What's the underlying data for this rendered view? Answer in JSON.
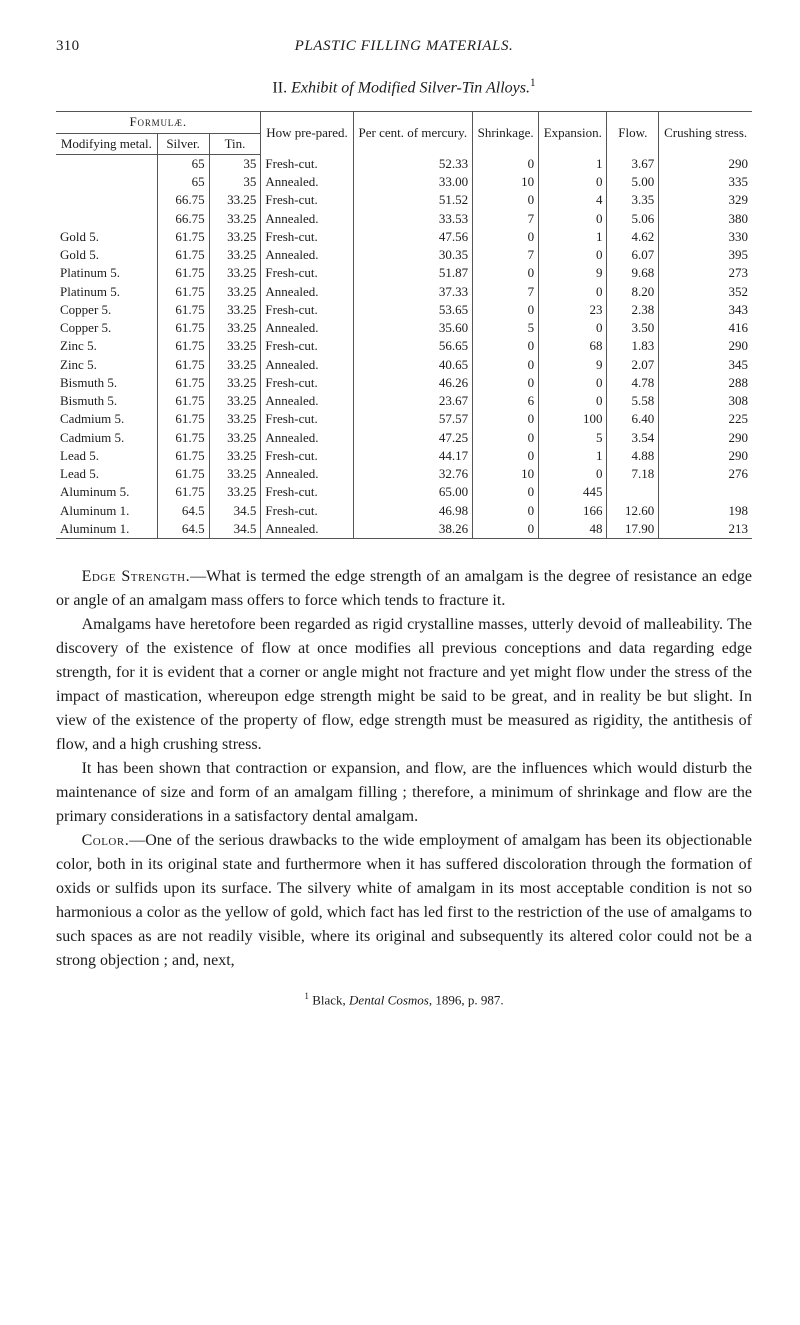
{
  "page": {
    "number": "310",
    "running_title": "PLASTIC FILLING MATERIALS."
  },
  "caption": {
    "roman": "II. ",
    "italic": "Exhibit of Modified Silver-Tin Alloys.",
    "sup": "1"
  },
  "table": {
    "headers": {
      "formulae": "Formulæ.",
      "modifying_metal": "Modifying metal.",
      "silver": "Silver.",
      "tin": "Tin.",
      "how_prepared": "How pre-pared.",
      "percent_mercury": "Per cent. of mercury.",
      "shrinkage": "Shrinkage.",
      "expansion": "Expansion.",
      "flow": "Flow.",
      "crushing_stress": "Crushing stress."
    },
    "rows": [
      {
        "mod": "",
        "silv": "65",
        "tin": "35",
        "prep": "Fresh-cut.",
        "merc": "52.33",
        "shr": "0",
        "exp": "1",
        "flow": "3.67",
        "crush": "290"
      },
      {
        "mod": "",
        "silv": "65",
        "tin": "35",
        "prep": "Annealed.",
        "merc": "33.00",
        "shr": "10",
        "exp": "0",
        "flow": "5.00",
        "crush": "335"
      },
      {
        "mod": "",
        "silv": "66.75",
        "tin": "33.25",
        "prep": "Fresh-cut.",
        "merc": "51.52",
        "shr": "0",
        "exp": "4",
        "flow": "3.35",
        "crush": "329"
      },
      {
        "mod": "",
        "silv": "66.75",
        "tin": "33.25",
        "prep": "Annealed.",
        "merc": "33.53",
        "shr": "7",
        "exp": "0",
        "flow": "5.06",
        "crush": "380"
      },
      {
        "mod": "Gold 5.",
        "silv": "61.75",
        "tin": "33.25",
        "prep": "Fresh-cut.",
        "merc": "47.56",
        "shr": "0",
        "exp": "1",
        "flow": "4.62",
        "crush": "330"
      },
      {
        "mod": "Gold 5.",
        "silv": "61.75",
        "tin": "33.25",
        "prep": "Annealed.",
        "merc": "30.35",
        "shr": "7",
        "exp": "0",
        "flow": "6.07",
        "crush": "395"
      },
      {
        "mod": "Platinum 5.",
        "silv": "61.75",
        "tin": "33.25",
        "prep": "Fresh-cut.",
        "merc": "51.87",
        "shr": "0",
        "exp": "9",
        "flow": "9.68",
        "crush": "273"
      },
      {
        "mod": "Platinum 5.",
        "silv": "61.75",
        "tin": "33.25",
        "prep": "Annealed.",
        "merc": "37.33",
        "shr": "7",
        "exp": "0",
        "flow": "8.20",
        "crush": "352"
      },
      {
        "mod": "Copper 5.",
        "silv": "61.75",
        "tin": "33.25",
        "prep": "Fresh-cut.",
        "merc": "53.65",
        "shr": "0",
        "exp": "23",
        "flow": "2.38",
        "crush": "343"
      },
      {
        "mod": "Copper 5.",
        "silv": "61.75",
        "tin": "33.25",
        "prep": "Annealed.",
        "merc": "35.60",
        "shr": "5",
        "exp": "0",
        "flow": "3.50",
        "crush": "416"
      },
      {
        "mod": "Zinc 5.",
        "silv": "61.75",
        "tin": "33.25",
        "prep": "Fresh-cut.",
        "merc": "56.65",
        "shr": "0",
        "exp": "68",
        "flow": "1.83",
        "crush": "290"
      },
      {
        "mod": "Zinc 5.",
        "silv": "61.75",
        "tin": "33.25",
        "prep": "Annealed.",
        "merc": "40.65",
        "shr": "0",
        "exp": "9",
        "flow": "2.07",
        "crush": "345"
      },
      {
        "mod": "Bismuth 5.",
        "silv": "61.75",
        "tin": "33.25",
        "prep": "Fresh-cut.",
        "merc": "46.26",
        "shr": "0",
        "exp": "0",
        "flow": "4.78",
        "crush": "288"
      },
      {
        "mod": "Bismuth 5.",
        "silv": "61.75",
        "tin": "33.25",
        "prep": "Annealed.",
        "merc": "23.67",
        "shr": "6",
        "exp": "0",
        "flow": "5.58",
        "crush": "308"
      },
      {
        "mod": "Cadmium 5.",
        "silv": "61.75",
        "tin": "33.25",
        "prep": "Fresh-cut.",
        "merc": "57.57",
        "shr": "0",
        "exp": "100",
        "flow": "6.40",
        "crush": "225"
      },
      {
        "mod": "Cadmium 5.",
        "silv": "61.75",
        "tin": "33.25",
        "prep": "Annealed.",
        "merc": "47.25",
        "shr": "0",
        "exp": "5",
        "flow": "3.54",
        "crush": "290"
      },
      {
        "mod": "Lead 5.",
        "silv": "61.75",
        "tin": "33.25",
        "prep": "Fresh-cut.",
        "merc": "44.17",
        "shr": "0",
        "exp": "1",
        "flow": "4.88",
        "crush": "290"
      },
      {
        "mod": "Lead 5.",
        "silv": "61.75",
        "tin": "33.25",
        "prep": "Annealed.",
        "merc": "32.76",
        "shr": "10",
        "exp": "0",
        "flow": "7.18",
        "crush": "276"
      },
      {
        "mod": "Aluminum 5.",
        "silv": "61.75",
        "tin": "33.25",
        "prep": "Fresh-cut.",
        "merc": "65.00",
        "shr": "0",
        "exp": "445",
        "flow": "",
        "crush": ""
      },
      {
        "mod": "Aluminum 1.",
        "silv": "64.5",
        "tin": "34.5",
        "prep": "Fresh-cut.",
        "merc": "46.98",
        "shr": "0",
        "exp": "166",
        "flow": "12.60",
        "crush": "198"
      },
      {
        "mod": "Aluminum 1.",
        "silv": "64.5",
        "tin": "34.5",
        "prep": "Annealed.",
        "merc": "38.26",
        "shr": "0",
        "exp": "48",
        "flow": "17.90",
        "crush": "213"
      }
    ]
  },
  "paragraphs": {
    "p1_lead": "Edge Strength.",
    "p1_rest": "—What is termed the edge strength of an amalgam is the degree of resistance an edge or angle of an amalgam mass offers to force which tends to fracture it.",
    "p2": "Amalgams have heretofore been regarded as rigid crystalline masses, utterly devoid of malleability. The discovery of the existence of flow at once modifies all previous conceptions and data regarding edge strength, for it is evident that a corner or angle might not fracture and yet might flow under the stress of the impact of mastication, whereupon edge strength might be said to be great, and in reality be but slight. In view of the existence of the property of flow, edge strength must be measured as rigidity, the antithesis of flow, and a high crushing stress.",
    "p3": "It has been shown that contraction or expansion, and flow, are the influences which would disturb the maintenance of size and form of an amalgam filling ; therefore, a minimum of shrinkage and flow are the primary considerations in a satisfactory dental amalgam.",
    "p4_lead": "Color.",
    "p4_rest": "—One of the serious drawbacks to the wide employment of amalgam has been its objectionable color, both in its original state and furthermore when it has suffered discoloration through the formation of oxids or sulfids upon its surface. The silvery white of amalgam in its most acceptable condition is not so harmonious a color as the yellow of gold, which fact has led first to the restriction of the use of amalgams to such spaces as are not readily visible, where its original and subsequently its altered color could not be a strong objection ; and, next,"
  },
  "footnote": {
    "sup": "1",
    "pre": " Black, ",
    "ital": "Dental Cosmos",
    "post": ", 1896, p. 987."
  }
}
